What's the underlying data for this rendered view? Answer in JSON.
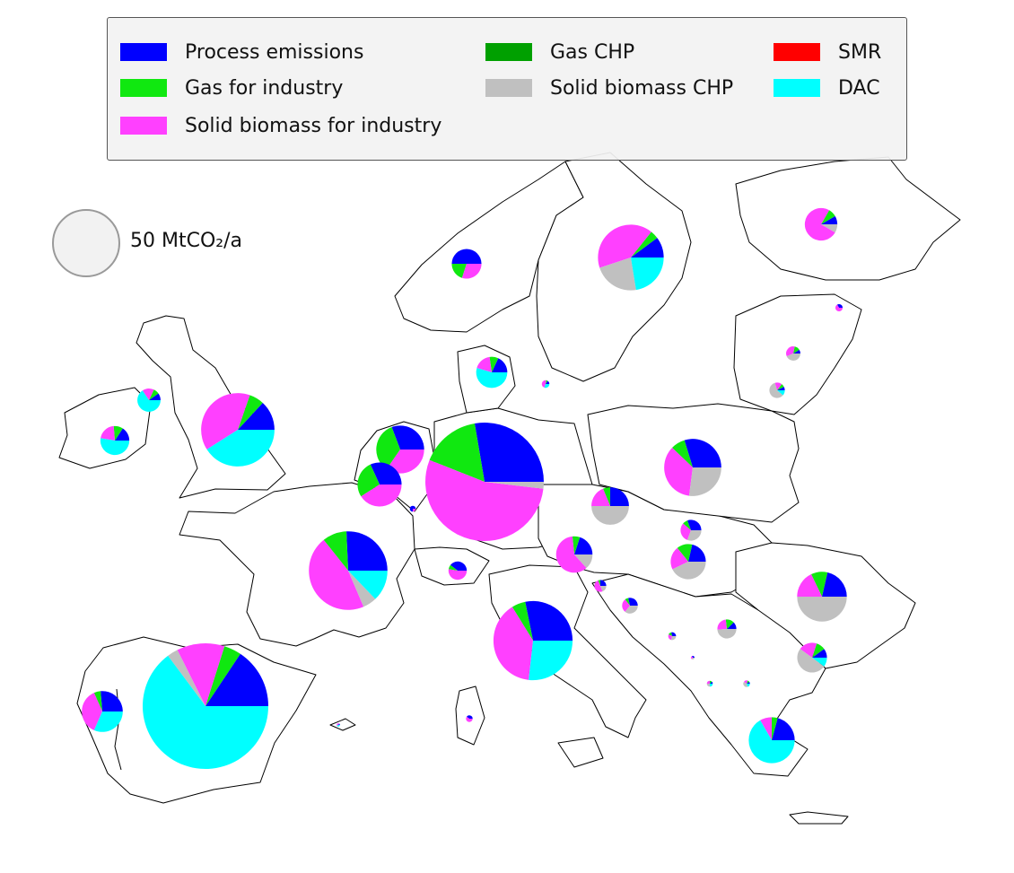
{
  "legend": {
    "items": [
      {
        "label": "Process emissions",
        "color": "#0000ff"
      },
      {
        "label": "Gas for industry",
        "color": "#10e810"
      },
      {
        "label": "Solid biomass for industry",
        "color": "#ff40ff"
      },
      {
        "label": "Gas CHP",
        "color": "#00a000"
      },
      {
        "label": "Solid biomass CHP",
        "color": "#c0c0c0"
      },
      {
        "label": "SMR",
        "color": "#ff0000"
      },
      {
        "label": "DAC",
        "color": "#00ffff"
      }
    ]
  },
  "scale": {
    "label": "50 MtCO₂/a",
    "value_mt": 50
  },
  "chart_data": {
    "type": "pie",
    "categories": [
      "Process emissions",
      "Gas for industry",
      "Solid biomass for industry",
      "Gas CHP",
      "Solid biomass CHP",
      "SMR",
      "DAC"
    ],
    "colors": [
      "#0000ff",
      "#10e810",
      "#ff40ff",
      "#00a000",
      "#c0c0c0",
      "#ff0000",
      "#00ffff"
    ],
    "units": "MtCO2/a",
    "countries": [
      {
        "name": "Spain",
        "values": [
          28,
          8,
          22,
          0,
          5,
          0,
          116
        ]
      },
      {
        "name": "Germany",
        "values": [
          44,
          26,
          86,
          0,
          3,
          0,
          0
        ]
      },
      {
        "name": "France",
        "values": [
          18,
          7,
          32,
          0,
          4,
          0,
          9
        ]
      },
      {
        "name": "Italy",
        "values": [
          20,
          4,
          28,
          0,
          0,
          0,
          19
        ]
      },
      {
        "name": "United Kingdom",
        "values": [
          8,
          4,
          24,
          0,
          0,
          0,
          25
        ]
      },
      {
        "name": "Poland",
        "values": [
          11,
          3,
          13,
          0,
          10,
          0,
          0
        ]
      },
      {
        "name": "Sweden",
        "values": [
          5,
          2,
          20,
          0,
          11,
          0,
          11
        ]
      },
      {
        "name": "Netherlands",
        "values": [
          8,
          9,
          9,
          0,
          0,
          0,
          0
        ]
      },
      {
        "name": "Belgium",
        "values": [
          7,
          6,
          9,
          0,
          0,
          0,
          0
        ]
      },
      {
        "name": "Romania",
        "values": [
          6,
          3,
          5,
          0,
          14,
          0,
          0
        ]
      },
      {
        "name": "Greece",
        "values": [
          5,
          1,
          2,
          0,
          0,
          0,
          16
        ]
      },
      {
        "name": "Portugal",
        "values": [
          5,
          1,
          7,
          0,
          0,
          0,
          6
        ]
      },
      {
        "name": "Czech Republic",
        "values": [
          4,
          1,
          3,
          0,
          8,
          0,
          0
        ]
      },
      {
        "name": "Austria",
        "values": [
          3,
          1,
          9,
          0,
          2,
          0,
          0
        ]
      },
      {
        "name": "Finland",
        "values": [
          1,
          1,
          9,
          0,
          1,
          0,
          0
        ]
      },
      {
        "name": "Hungary",
        "values": [
          3,
          2,
          3,
          0,
          6,
          0,
          0
        ]
      },
      {
        "name": "Denmark",
        "values": [
          2,
          1,
          2,
          0,
          0,
          0,
          6
        ]
      },
      {
        "name": "Norway",
        "values": [
          5,
          2,
          3,
          0,
          0,
          0,
          0
        ]
      },
      {
        "name": "Ireland",
        "values": [
          1.5,
          1,
          2,
          0,
          0,
          0,
          5
        ]
      },
      {
        "name": "Bulgaria",
        "values": [
          1,
          1,
          2,
          0,
          5,
          0,
          1
        ]
      },
      {
        "name": "Northern Ireland",
        "values": [
          0.6,
          0.5,
          1,
          0,
          0,
          0,
          4
        ]
      },
      {
        "name": "Switzerland",
        "values": [
          1.5,
          0.3,
          2,
          0,
          0,
          0,
          0
        ]
      },
      {
        "name": "Slovakia",
        "values": [
          1.5,
          0.4,
          1.5,
          0,
          1.5,
          0,
          0
        ]
      },
      {
        "name": "Serbia",
        "values": [
          0.5,
          0.6,
          1,
          0,
          2,
          0,
          0
        ]
      },
      {
        "name": "Croatia",
        "values": [
          0.8,
          0.2,
          0.8,
          0,
          1,
          0,
          0
        ]
      },
      {
        "name": "Lithuania",
        "values": [
          0.2,
          0.2,
          0.4,
          0,
          1.6,
          0,
          0.3
        ]
      },
      {
        "name": "Latvia",
        "values": [
          0.2,
          0.3,
          0.8,
          0,
          1,
          0,
          0
        ]
      },
      {
        "name": "Slovenia",
        "values": [
          0.4,
          0.1,
          0.8,
          0,
          0.3,
          0,
          0
        ]
      },
      {
        "name": "Bosnia and Herzegovina",
        "values": [
          0.2,
          0.1,
          0.2,
          0,
          0.2,
          0,
          0
        ]
      },
      {
        "name": "Luxembourg",
        "values": [
          0.3,
          0,
          0.1,
          0,
          0,
          0,
          0
        ]
      },
      {
        "name": "Sardinia",
        "values": [
          0.2,
          0,
          0.3,
          0,
          0,
          0,
          0
        ]
      },
      {
        "name": "Estonia",
        "values": [
          0.2,
          0,
          0.4,
          0,
          0,
          0,
          0
        ]
      },
      {
        "name": "Zealand",
        "values": [
          0.1,
          0.05,
          0.3,
          0,
          0,
          0,
          0.2
        ]
      },
      {
        "name": "North Macedonia",
        "values": [
          0.05,
          0.05,
          0.1,
          0,
          0.2,
          0,
          0.1
        ]
      },
      {
        "name": "Albania",
        "values": [
          0.05,
          0.05,
          0.1,
          0,
          0.1,
          0,
          0.1
        ]
      },
      {
        "name": "Montenegro",
        "values": [
          0.05,
          0,
          0.05,
          0,
          0.05,
          0,
          0
        ]
      },
      {
        "name": "Balearic Islands",
        "values": [
          0.02,
          0,
          0.05,
          0,
          0,
          0,
          0.05
        ]
      }
    ]
  }
}
